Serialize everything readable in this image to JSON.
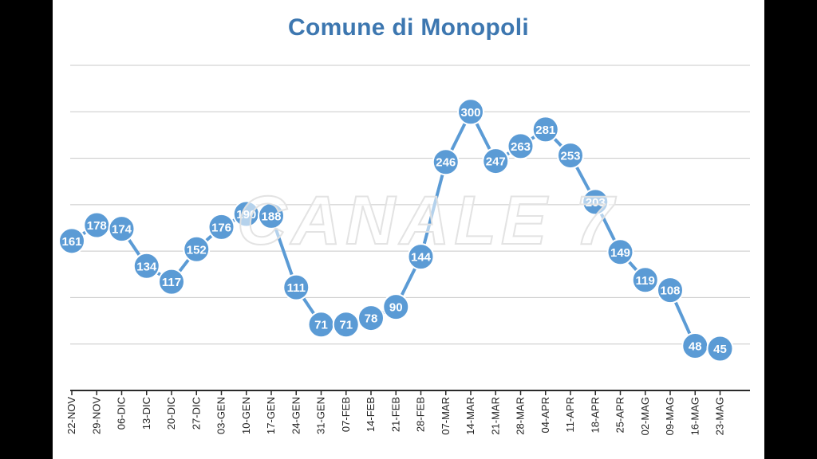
{
  "chart_data": {
    "type": "line",
    "title": "Comune di Monopoli",
    "xlabel": "",
    "ylabel": "",
    "categories": [
      "22-NOV",
      "29-NOV",
      "06-DIC",
      "13-DIC",
      "20-DIC",
      "27-DIC",
      "03-GEN",
      "10-GEN",
      "17-GEN",
      "24-GEN",
      "31-GEN",
      "07-FEB",
      "14-FEB",
      "21-FEB",
      "28-FEB",
      "07-MAR",
      "14-MAR",
      "21-MAR",
      "28-MAR",
      "04-APR",
      "11-APR",
      "18-APR",
      "25-APR",
      "02-MAG",
      "09-MAG",
      "16-MAG",
      "23-MAG"
    ],
    "series": [
      {
        "values": [
          161,
          178,
          174,
          134,
          117,
          152,
          176,
          190,
          188,
          111,
          71,
          71,
          78,
          90,
          144,
          246,
          300,
          247,
          263,
          281,
          253,
          203,
          149,
          119,
          108,
          48,
          45
        ]
      }
    ],
    "ylim": [
      0,
      350
    ],
    "grid": true,
    "legend": "none",
    "colors": {
      "line": "#5b9bd5",
      "title": "#3d77b0",
      "background": "#000000"
    }
  },
  "watermark": "CANALE 7"
}
